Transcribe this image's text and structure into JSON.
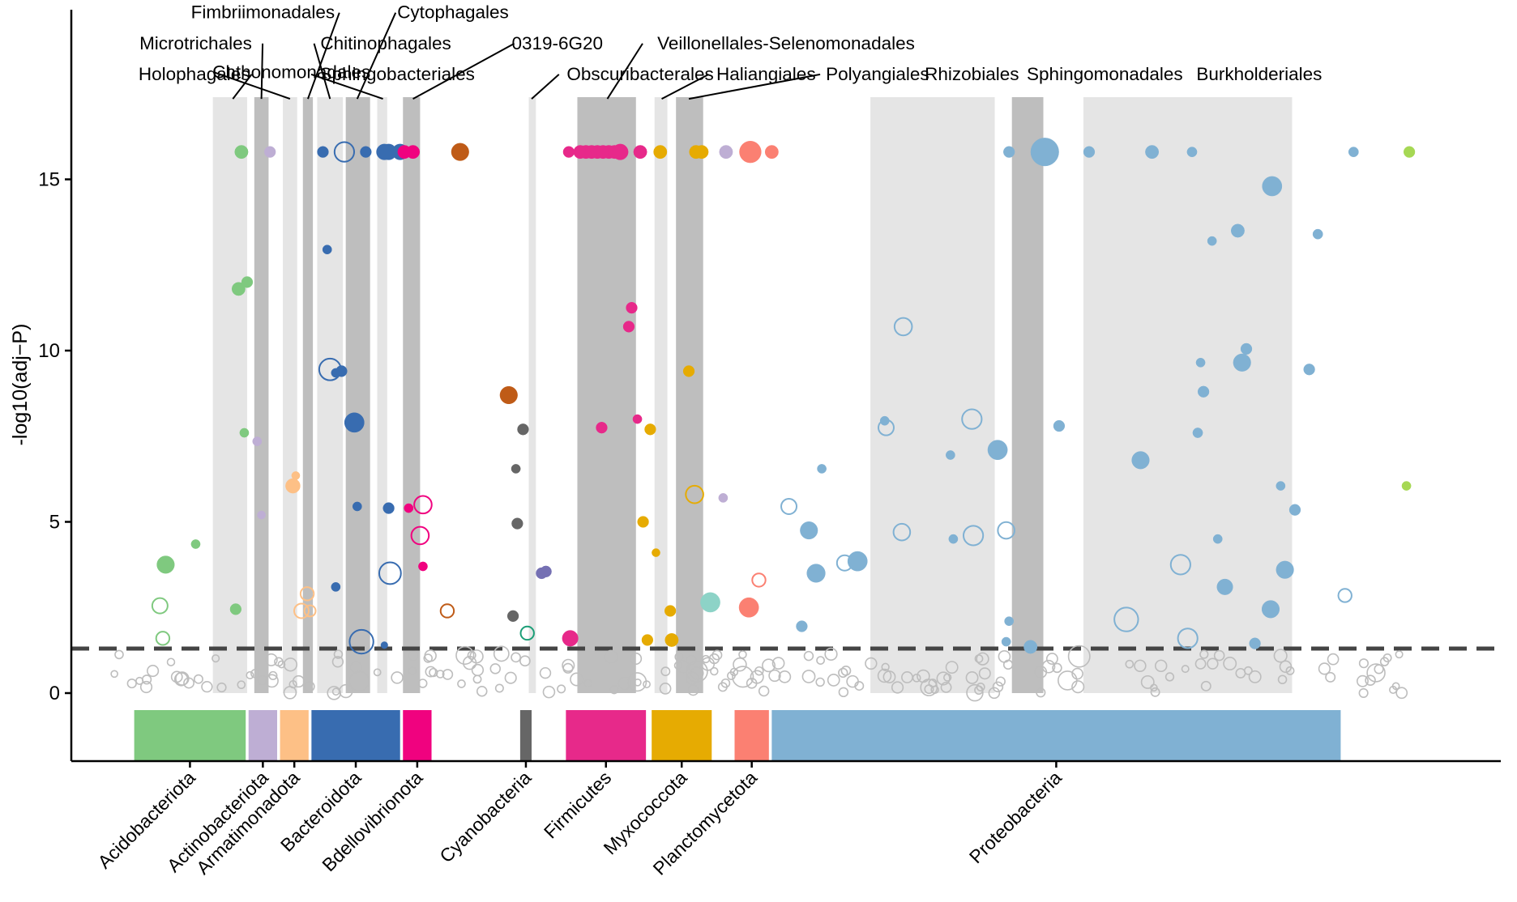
{
  "chart_data": {
    "type": "scatter",
    "title": "",
    "xlabel": "",
    "ylabel": "-log10(adj−P)",
    "ylim": [
      -2,
      20
    ],
    "xlim": [
      0,
      100
    ],
    "yticks": [
      0,
      5,
      10,
      15
    ],
    "threshold": 1.3,
    "phyla": [
      {
        "name": "Acidobacteriota",
        "color": "#7fc97f",
        "x0": 4.4,
        "x1": 12.2,
        "label_x": 8.3
      },
      {
        "name": "Actinobacteriota",
        "color": "#beaed4",
        "x0": 12.4,
        "x1": 14.4,
        "label_x": 13.4
      },
      {
        "name": "Armatimonadota",
        "color": "#fdc086",
        "x0": 14.6,
        "x1": 16.6,
        "label_x": 15.6
      },
      {
        "name": "Bacteroidota",
        "color": "#386cb0",
        "x0": 16.8,
        "x1": 23.0,
        "label_x": 19.9
      },
      {
        "name": "Bdellovibrionota",
        "color": "#f0027f",
        "x0": 23.2,
        "x1": 25.2,
        "label_x": 24.2
      },
      {
        "name": "Cyanobacteria",
        "color": "#666666",
        "x0": 31.4,
        "x1": 32.2,
        "label_x": 31.8
      },
      {
        "name": "Firmicutes",
        "color": "#e7298a",
        "x0": 34.6,
        "x1": 40.2,
        "label_x": 37.4
      },
      {
        "name": "Myxococcota",
        "color": "#e6ab02",
        "x0": 40.6,
        "x1": 44.8,
        "label_x": 42.7
      },
      {
        "name": "Planctomycetota",
        "color": "#fb8072",
        "x0": 46.4,
        "x1": 48.8,
        "label_x": 47.6
      },
      {
        "name": "Proteobacteria",
        "color": "#80b1d3",
        "x0": 49.0,
        "x1": 88.8,
        "label_x": 68.9
      }
    ],
    "orders": [
      {
        "name": "Holophagales",
        "x0": 9.9,
        "x1": 12.3,
        "shade": "light"
      },
      {
        "name": "Microtrichales",
        "x0": 12.8,
        "x1": 13.8,
        "shade": "dark"
      },
      {
        "name": "Chthonomonadales",
        "x0": 14.8,
        "x1": 15.8,
        "shade": "light"
      },
      {
        "name": "Fimbriimonadales",
        "x0": 16.2,
        "x1": 16.9,
        "shade": "dark"
      },
      {
        "name": "Chitinophagales",
        "x0": 17.2,
        "x1": 19.0,
        "shade": "light"
      },
      {
        "name": "Cytophagales",
        "x0": 19.2,
        "x1": 20.9,
        "shade": "dark"
      },
      {
        "name": "Sphingobacteriales",
        "x0": 21.4,
        "x1": 22.1,
        "shade": "light"
      },
      {
        "name": "0319-6G20",
        "x0": 23.2,
        "x1": 24.4,
        "shade": "dark"
      },
      {
        "name": "Obscuribacterales",
        "x0": 32.0,
        "x1": 32.5,
        "shade": "light"
      },
      {
        "name": "Veillonellales-Selenomonadales",
        "x0": 35.4,
        "x1": 39.5,
        "shade": "dark"
      },
      {
        "name": "Haliangiales",
        "x0": 40.8,
        "x1": 41.7,
        "shade": "light"
      },
      {
        "name": "Polyangiales",
        "x0": 42.3,
        "x1": 44.2,
        "shade": "dark"
      },
      {
        "name": "Rhizobiales",
        "x0": 55.9,
        "x1": 64.6,
        "shade": "light"
      },
      {
        "name": "Sphingomonadales",
        "x0": 65.8,
        "x1": 68.0,
        "shade": "dark"
      },
      {
        "name": "Burkholderiales",
        "x0": 70.8,
        "x1": 85.4,
        "shade": "light"
      }
    ],
    "order_labels": [
      {
        "name": "Holophagales",
        "tx": 8.6,
        "ty": 17.9,
        "anchor": "middle",
        "ex": 11.3
      },
      {
        "name": "Microtrichales",
        "tx": 8.7,
        "ty": 18.8,
        "anchor": "middle",
        "ex": 13.3
      },
      {
        "name": "Chthonomonadales",
        "tx": 15.4,
        "ty": 17.95,
        "anchor": "middle",
        "ex": 15.3
      },
      {
        "name": "Fimbriimonadales",
        "tx": 13.4,
        "ty": 19.7,
        "anchor": "middle",
        "ex": 16.55
      },
      {
        "name": "Chitinophagales",
        "tx": 22.0,
        "ty": 18.8,
        "anchor": "middle",
        "ex": 18.1
      },
      {
        "name": "Cytophagales",
        "tx": 26.7,
        "ty": 19.7,
        "anchor": "middle",
        "ex": 20.0
      },
      {
        "name": "Sphingobacteriales",
        "tx": 22.8,
        "ty": 17.9,
        "anchor": "middle",
        "ex": 21.8
      },
      {
        "name": "0319-6G20",
        "tx": 34.0,
        "ty": 18.8,
        "anchor": "middle",
        "ex": 23.9
      },
      {
        "name": "Obscuribacterales",
        "tx": 39.8,
        "ty": 17.9,
        "anchor": "middle",
        "ex": 32.2
      },
      {
        "name": "Veillonellales-Selenomonadales",
        "tx": 50.0,
        "ty": 18.8,
        "anchor": "middle",
        "ex": 37.5
      },
      {
        "name": "Haliangiales",
        "tx": 48.6,
        "ty": 17.9,
        "anchor": "middle",
        "ex": 41.3
      },
      {
        "name": "Polyangiales",
        "tx": 56.4,
        "ty": 17.9,
        "anchor": "middle",
        "ex": 43.2
      },
      {
        "name": "Rhizobiales",
        "tx": 63.0,
        "ty": 17.9,
        "anchor": "middle",
        "ex": null
      },
      {
        "name": "Sphingomonadales",
        "tx": 72.3,
        "ty": 17.9,
        "anchor": "middle",
        "ex": null
      },
      {
        "name": "Burkholderiales",
        "tx": 83.1,
        "ty": 17.9,
        "anchor": "middle",
        "ex": null
      }
    ],
    "points": [
      [
        11.9,
        15.8,
        "#7fc97f",
        1,
        2
      ],
      [
        11.7,
        11.8,
        "#7fc97f",
        1,
        2
      ],
      [
        12.3,
        12.0,
        "#7fc97f",
        1,
        1.5
      ],
      [
        12.1,
        7.6,
        "#7fc97f",
        1,
        1
      ],
      [
        6.6,
        3.75,
        "#7fc97f",
        1,
        3
      ],
      [
        8.7,
        4.35,
        "#7fc97f",
        1,
        1
      ],
      [
        6.2,
        2.55,
        "#7fc97f",
        0,
        2.5
      ],
      [
        11.5,
        2.45,
        "#7fc97f",
        1,
        1.5
      ],
      [
        6.4,
        1.6,
        "#7fc97f",
        0,
        2
      ],
      [
        13.9,
        15.8,
        "#beaed4",
        1,
        1.5
      ],
      [
        13.0,
        7.35,
        "#beaed4",
        1,
        1
      ],
      [
        13.3,
        5.2,
        "#beaed4",
        1,
        0.8
      ],
      [
        15.7,
        6.35,
        "#fdc086",
        1,
        0.8
      ],
      [
        15.5,
        6.05,
        "#fdc086",
        1,
        2.3
      ],
      [
        16.5,
        2.9,
        "#fdc086",
        0,
        2
      ],
      [
        16.1,
        2.4,
        "#fdc086",
        0,
        2.3
      ],
      [
        16.7,
        2.4,
        "#fdc086",
        0,
        1.5
      ],
      [
        17.6,
        15.8,
        "#386cb0",
        1,
        1.5
      ],
      [
        19.1,
        15.8,
        "#386cb0",
        0,
        3.5
      ],
      [
        20.6,
        15.8,
        "#386cb0",
        1,
        1.5
      ],
      [
        21.9,
        15.8,
        "#386cb0",
        1,
        2.6
      ],
      [
        22.2,
        15.8,
        "#386cb0",
        1,
        2.6
      ],
      [
        23.0,
        15.8,
        "#386cb0",
        1,
        2.6
      ],
      [
        17.9,
        12.95,
        "#386cb0",
        1,
        1
      ],
      [
        18.1,
        9.45,
        "#386cb0",
        0,
        4
      ],
      [
        18.9,
        9.4,
        "#386cb0",
        1,
        1.5
      ],
      [
        18.5,
        9.35,
        "#386cb0",
        1,
        1
      ],
      [
        19.8,
        7.9,
        "#386cb0",
        1,
        3.5
      ],
      [
        20.0,
        5.45,
        "#386cb0",
        1,
        1
      ],
      [
        22.2,
        5.4,
        "#386cb0",
        1,
        1.5
      ],
      [
        18.5,
        3.1,
        "#386cb0",
        1,
        1
      ],
      [
        22.3,
        3.5,
        "#386cb0",
        0,
        4
      ],
      [
        20.3,
        1.5,
        "#386cb0",
        0,
        4.5
      ],
      [
        21.9,
        1.4,
        "#386cb0",
        1,
        0.5
      ],
      [
        23.9,
        15.8,
        "#f0027f",
        1,
        2
      ],
      [
        23.3,
        15.8,
        "#f0027f",
        1,
        2
      ],
      [
        24.6,
        5.5,
        "#f0027f",
        0,
        3
      ],
      [
        23.6,
        5.4,
        "#f0027f",
        1,
        1
      ],
      [
        24.4,
        4.6,
        "#f0027f",
        0,
        3
      ],
      [
        24.6,
        3.7,
        "#f0027f",
        1,
        1
      ],
      [
        27.2,
        15.8,
        "#bf5b17",
        1,
        3
      ],
      [
        30.6,
        8.7,
        "#bf5b17",
        1,
        3
      ],
      [
        26.3,
        2.4,
        "#bf5b17",
        0,
        2
      ],
      [
        31.6,
        7.7,
        "#666666",
        1,
        1.5
      ],
      [
        31.1,
        6.55,
        "#666666",
        1,
        1
      ],
      [
        31.2,
        4.95,
        "#666666",
        1,
        1.5
      ],
      [
        30.9,
        2.25,
        "#666666",
        1,
        1.5
      ],
      [
        31.9,
        1.75,
        "#1b9e77",
        0,
        2
      ],
      [
        32.9,
        3.5,
        "#7570b3",
        1,
        1.5
      ],
      [
        33.2,
        3.55,
        "#7570b3",
        1,
        1.5
      ],
      [
        34.8,
        15.8,
        "#e7298a",
        1,
        1.5
      ],
      [
        35.6,
        15.8,
        "#e7298a",
        1,
        2
      ],
      [
        36.0,
        15.8,
        "#e7298a",
        1,
        2
      ],
      [
        36.4,
        15.8,
        "#e7298a",
        1,
        2
      ],
      [
        36.8,
        15.8,
        "#e7298a",
        1,
        2
      ],
      [
        37.2,
        15.8,
        "#e7298a",
        1,
        2
      ],
      [
        37.6,
        15.8,
        "#e7298a",
        1,
        2
      ],
      [
        38.0,
        15.8,
        "#e7298a",
        1,
        2
      ],
      [
        38.4,
        15.8,
        "#e7298a",
        1,
        2.6
      ],
      [
        39.8,
        15.8,
        "#e7298a",
        1,
        2
      ],
      [
        39.2,
        11.25,
        "#e7298a",
        1,
        1.5
      ],
      [
        39.0,
        10.7,
        "#e7298a",
        1,
        1.5
      ],
      [
        37.1,
        7.75,
        "#e7298a",
        1,
        1.5
      ],
      [
        39.6,
        8.0,
        "#e7298a",
        1,
        1
      ],
      [
        34.9,
        1.6,
        "#e7298a",
        1,
        2.6
      ],
      [
        41.2,
        15.8,
        "#e6ab02",
        1,
        2
      ],
      [
        43.7,
        15.8,
        "#e6ab02",
        1,
        2
      ],
      [
        44.1,
        15.8,
        "#e6ab02",
        1,
        2
      ],
      [
        43.2,
        9.4,
        "#e6ab02",
        1,
        1.5
      ],
      [
        40.5,
        7.7,
        "#e6ab02",
        1,
        1.5
      ],
      [
        43.6,
        5.8,
        "#e6ab02",
        0,
        3
      ],
      [
        40.0,
        5.0,
        "#e6ab02",
        1,
        1.5
      ],
      [
        40.9,
        4.1,
        "#e6ab02",
        1,
        0.8
      ],
      [
        41.9,
        2.4,
        "#e6ab02",
        1,
        1.5
      ],
      [
        40.3,
        1.55,
        "#e6ab02",
        1,
        1.5
      ],
      [
        42.0,
        1.55,
        "#e6ab02",
        1,
        2
      ],
      [
        45.8,
        15.8,
        "#beaed4",
        1,
        2
      ],
      [
        45.6,
        5.7,
        "#beaed4",
        1,
        1
      ],
      [
        44.7,
        2.65,
        "#8dd3c7",
        1,
        3.5
      ],
      [
        47.5,
        15.8,
        "#fb8072",
        1,
        4
      ],
      [
        49.0,
        15.8,
        "#fb8072",
        1,
        2
      ],
      [
        48.1,
        3.3,
        "#fb8072",
        0,
        2
      ],
      [
        47.4,
        2.5,
        "#fb8072",
        1,
        3.5
      ],
      [
        65.6,
        15.8,
        "#80b1d3",
        1,
        1.5
      ],
      [
        68.1,
        15.8,
        "#80b1d3",
        1,
        5.5
      ],
      [
        71.2,
        15.8,
        "#80b1d3",
        1,
        1.5
      ],
      [
        75.6,
        15.8,
        "#80b1d3",
        1,
        2
      ],
      [
        78.4,
        15.8,
        "#80b1d3",
        1,
        1.2
      ],
      [
        89.7,
        15.8,
        "#80b1d3",
        1,
        1.2
      ],
      [
        84.0,
        14.8,
        "#80b1d3",
        1,
        3.5
      ],
      [
        81.6,
        13.5,
        "#80b1d3",
        1,
        2
      ],
      [
        87.2,
        13.4,
        "#80b1d3",
        1,
        1.2
      ],
      [
        79.8,
        13.2,
        "#80b1d3",
        1,
        1
      ],
      [
        58.2,
        10.7,
        "#80b1d3",
        0,
        3
      ],
      [
        82.2,
        10.05,
        "#80b1d3",
        1,
        1.5
      ],
      [
        79.0,
        9.65,
        "#80b1d3",
        1,
        1
      ],
      [
        81.9,
        9.65,
        "#80b1d3",
        1,
        3
      ],
      [
        86.6,
        9.45,
        "#80b1d3",
        1,
        1.5
      ],
      [
        79.2,
        8.8,
        "#80b1d3",
        1,
        1.5
      ],
      [
        63.0,
        8.0,
        "#80b1d3",
        0,
        3.5
      ],
      [
        56.9,
        7.95,
        "#80b1d3",
        1,
        1
      ],
      [
        57.0,
        7.75,
        "#80b1d3",
        0,
        2.5
      ],
      [
        69.1,
        7.8,
        "#80b1d3",
        1,
        1.5
      ],
      [
        78.8,
        7.6,
        "#80b1d3",
        1,
        1.2
      ],
      [
        64.8,
        7.1,
        "#80b1d3",
        1,
        3.5
      ],
      [
        61.5,
        6.95,
        "#80b1d3",
        1,
        1
      ],
      [
        74.8,
        6.8,
        "#80b1d3",
        1,
        3
      ],
      [
        52.5,
        6.55,
        "#80b1d3",
        1,
        1
      ],
      [
        84.6,
        6.05,
        "#80b1d3",
        1,
        1
      ],
      [
        50.2,
        5.45,
        "#80b1d3",
        0,
        2.5
      ],
      [
        85.6,
        5.35,
        "#80b1d3",
        1,
        1.5
      ],
      [
        51.6,
        4.75,
        "#80b1d3",
        1,
        3
      ],
      [
        58.1,
        4.7,
        "#80b1d3",
        0,
        2.8
      ],
      [
        65.4,
        4.75,
        "#80b1d3",
        0,
        2.8
      ],
      [
        63.1,
        4.6,
        "#80b1d3",
        0,
        3.5
      ],
      [
        61.7,
        4.5,
        "#80b1d3",
        1,
        1
      ],
      [
        80.2,
        4.5,
        "#80b1d3",
        1,
        1
      ],
      [
        55.0,
        3.85,
        "#80b1d3",
        1,
        3.5
      ],
      [
        54.1,
        3.8,
        "#80b1d3",
        0,
        2.5
      ],
      [
        77.6,
        3.75,
        "#80b1d3",
        0,
        3.5
      ],
      [
        52.1,
        3.5,
        "#80b1d3",
        1,
        3.2
      ],
      [
        84.9,
        3.6,
        "#80b1d3",
        1,
        3
      ],
      [
        80.7,
        3.1,
        "#80b1d3",
        1,
        2.6
      ],
      [
        89.1,
        2.85,
        "#80b1d3",
        0,
        2
      ],
      [
        83.9,
        2.45,
        "#80b1d3",
        1,
        3
      ],
      [
        73.8,
        2.15,
        "#80b1d3",
        0,
        4.5
      ],
      [
        51.1,
        1.95,
        "#80b1d3",
        1,
        1.5
      ],
      [
        65.6,
        2.1,
        "#80b1d3",
        1,
        1
      ],
      [
        78.1,
        1.6,
        "#80b1d3",
        0,
        3.5
      ],
      [
        65.4,
        1.5,
        "#80b1d3",
        1,
        1
      ],
      [
        67.1,
        1.35,
        "#80b1d3",
        1,
        2
      ],
      [
        82.8,
        1.45,
        "#80b1d3",
        1,
        1.5
      ],
      [
        93.6,
        15.8,
        "#a6d854",
        1,
        1.5
      ],
      [
        93.4,
        6.05,
        "#a6d854",
        1,
        1
      ]
    ]
  }
}
